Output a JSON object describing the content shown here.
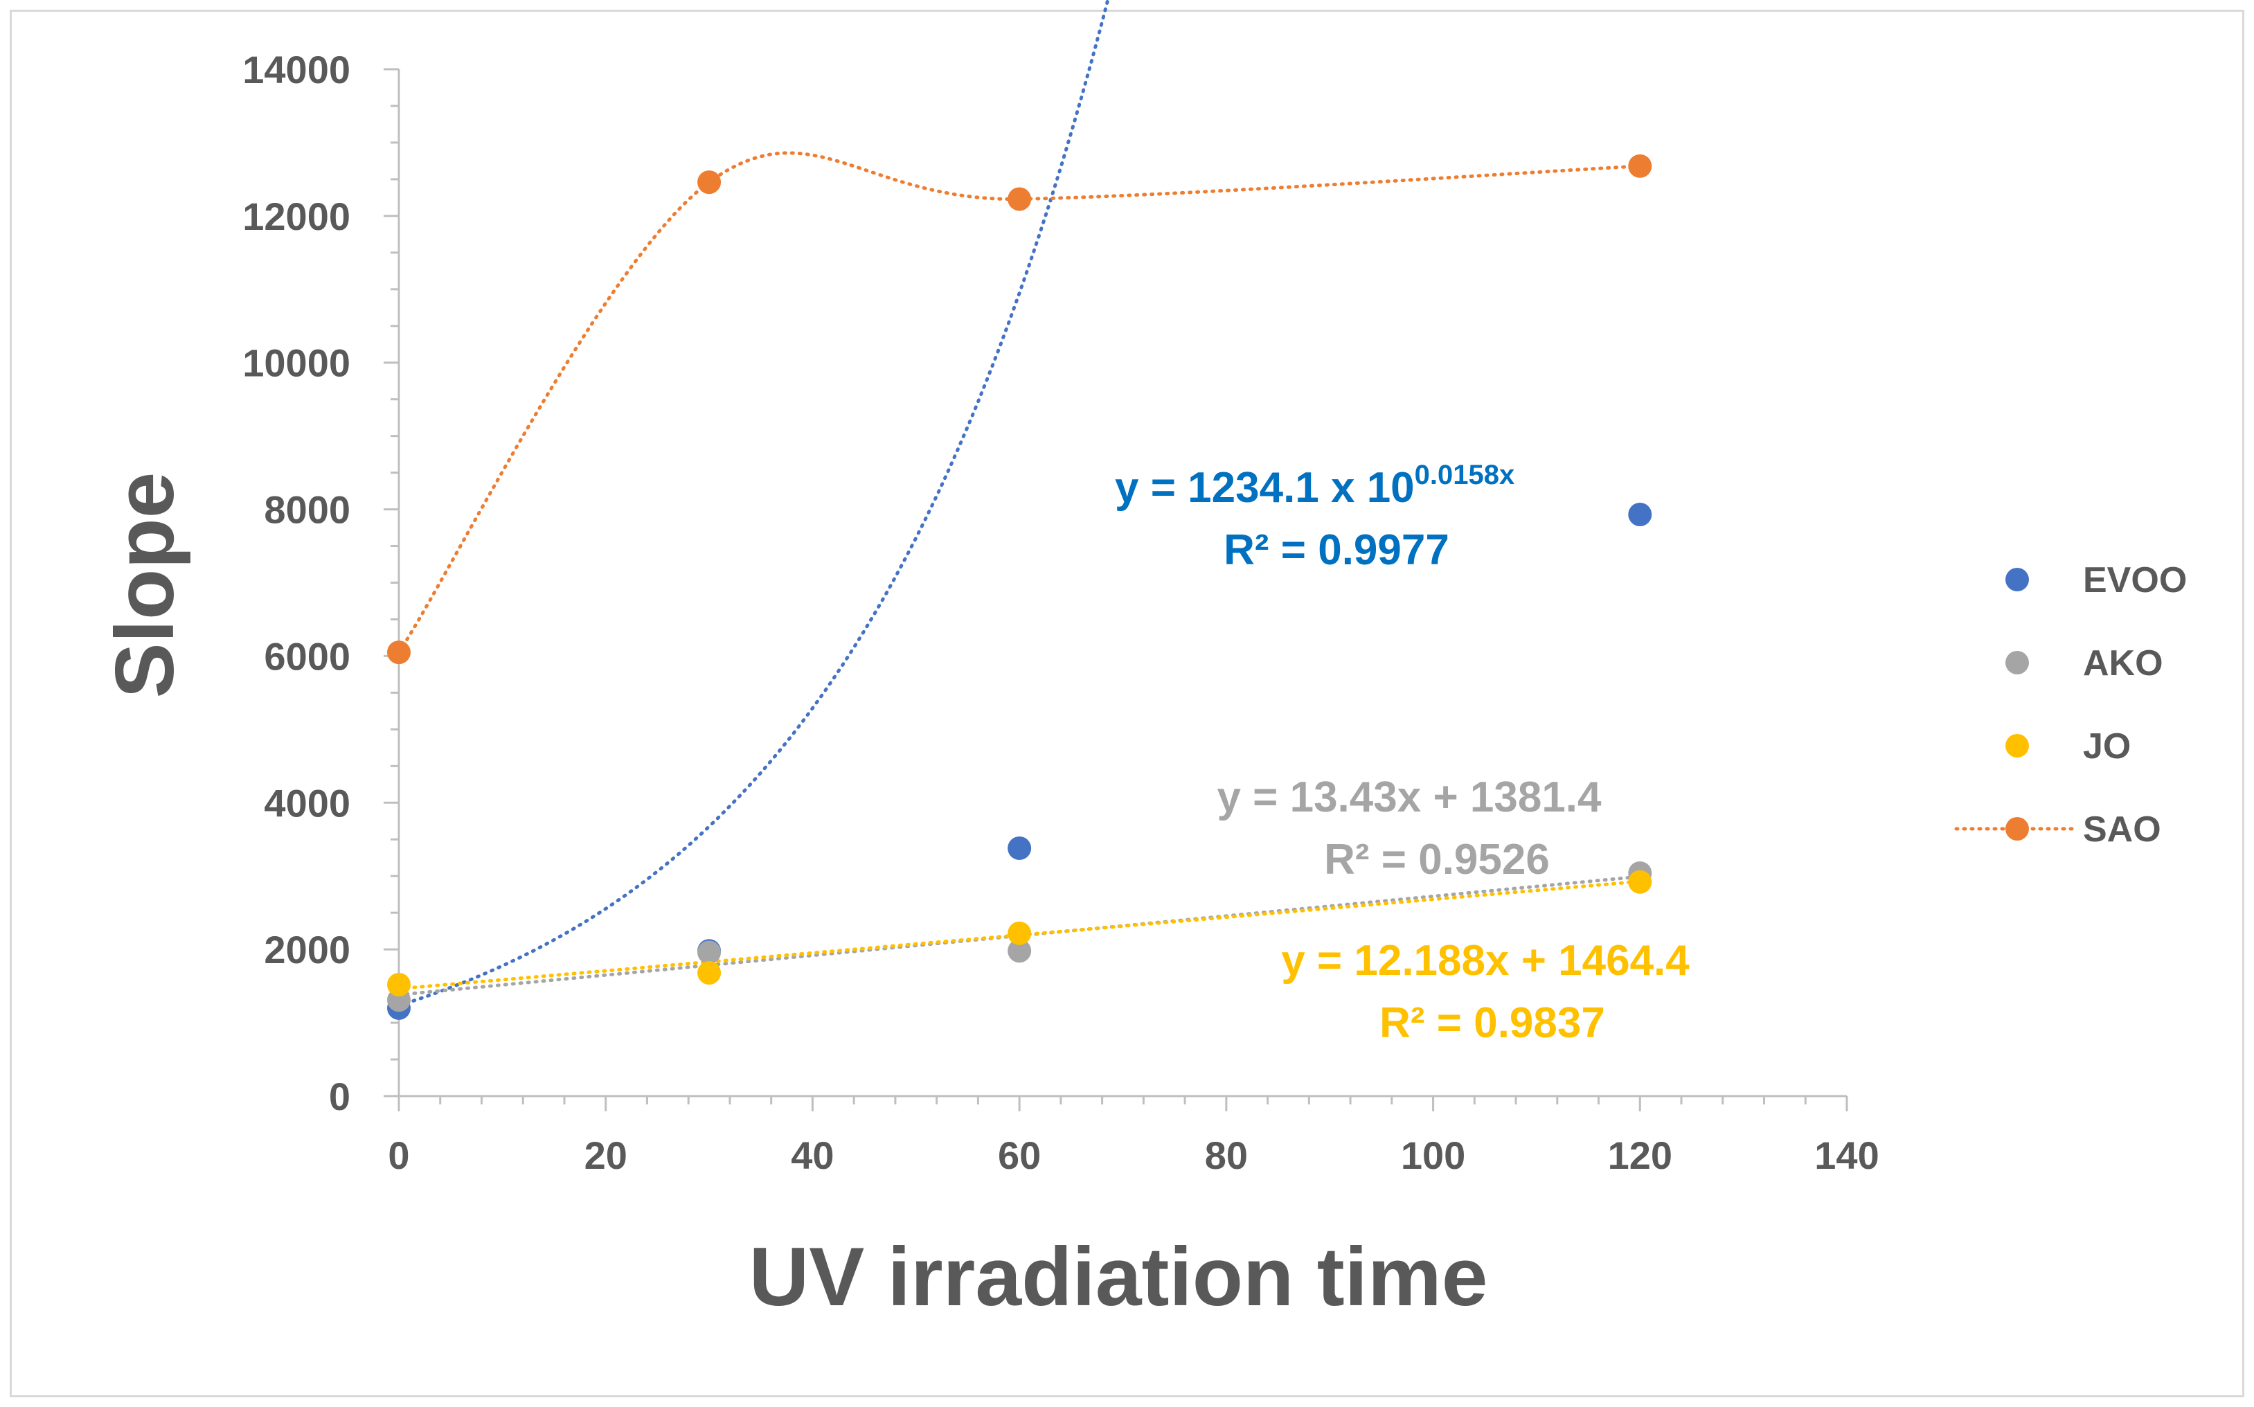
{
  "chart_data": {
    "type": "scatter",
    "title": "",
    "xlabel": "UV irradiation time",
    "ylabel": "Slope",
    "xlim": [
      0,
      140
    ],
    "ylim": [
      0,
      14000
    ],
    "x_ticks": [
      "0",
      "20",
      "40",
      "60",
      "80",
      "100",
      "120",
      "140"
    ],
    "y_ticks": [
      "0",
      "2000",
      "4000",
      "6000",
      "8000",
      "10000",
      "12000",
      "14000"
    ],
    "x_tick_values": [
      0,
      20,
      40,
      60,
      80,
      100,
      120,
      140
    ],
    "y_tick_values": [
      0,
      2000,
      4000,
      6000,
      8000,
      10000,
      12000,
      14000
    ],
    "grid": false,
    "legend_position": "right",
    "series": [
      {
        "name": "EVOO",
        "color": "#4472c4",
        "x": [
          0,
          30,
          60,
          120
        ],
        "values": [
          1200,
          1980,
          3380,
          7930
        ],
        "trendline": {
          "type": "exponential",
          "a": 1234.1,
          "b": 0.0158,
          "equation": "y = 1234.1 x 10",
          "exponent": "0.0158x",
          "r2": "R² = 0.9977",
          "color": "#0070c0"
        }
      },
      {
        "name": "AKO",
        "color": "#a5a5a5",
        "x": [
          0,
          30,
          60,
          120
        ],
        "values": [
          1310,
          1960,
          1980,
          3040
        ],
        "trendline": {
          "type": "linear",
          "slope": 13.43,
          "intercept": 1381.4,
          "equation": "y = 13.43x + 1381.4",
          "r2": "R² = 0.9526",
          "color": "#a5a5a5"
        }
      },
      {
        "name": "JO",
        "color": "#ffc000",
        "x": [
          0,
          30,
          60,
          120
        ],
        "values": [
          1520,
          1680,
          2220,
          2920
        ],
        "trendline": {
          "type": "linear",
          "slope": 12.188,
          "intercept": 1464.4,
          "equation": "y = 12.188x + 1464.4",
          "r2": "R² = 0.9837",
          "color": "#ffc000"
        }
      },
      {
        "name": "SAO",
        "color": "#ed7d31",
        "x": [
          0,
          30,
          60,
          120
        ],
        "values": [
          6050,
          12460,
          12230,
          12680
        ],
        "line_style": "dotted-smooth"
      }
    ]
  }
}
